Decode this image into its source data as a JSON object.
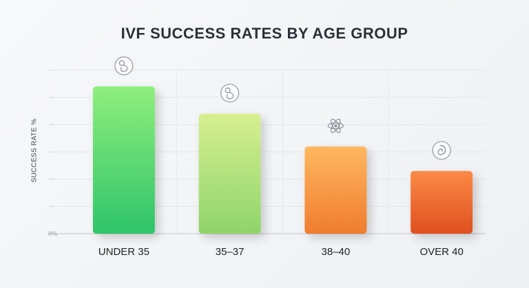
{
  "chart_data": {
    "type": "bar",
    "title": "IVF SUCCESS RATES BY AGE GROUP",
    "ylabel": "SUCCESS RATE %",
    "xlabel": "",
    "categories": [
      "UNDER 35",
      "35–37",
      "38–40",
      "OVER 40"
    ],
    "values": [
      54,
      44,
      32,
      23
    ],
    "ylim": [
      0,
      60
    ],
    "y_tick_labels": [
      "0%",
      "",
      "",
      "",
      "",
      "",
      ""
    ],
    "grid": true,
    "legend": "none",
    "colors": [
      [
        "#8eee7c",
        "#2fc46a"
      ],
      [
        "#d6ef90",
        "#8fd46a"
      ],
      [
        "#ffb760",
        "#f07c2e"
      ],
      [
        "#fb8a46",
        "#e04f1f"
      ]
    ],
    "icons": [
      "fetus-icon",
      "fetus-icon",
      "atom-icon",
      "embryo-icon"
    ]
  }
}
